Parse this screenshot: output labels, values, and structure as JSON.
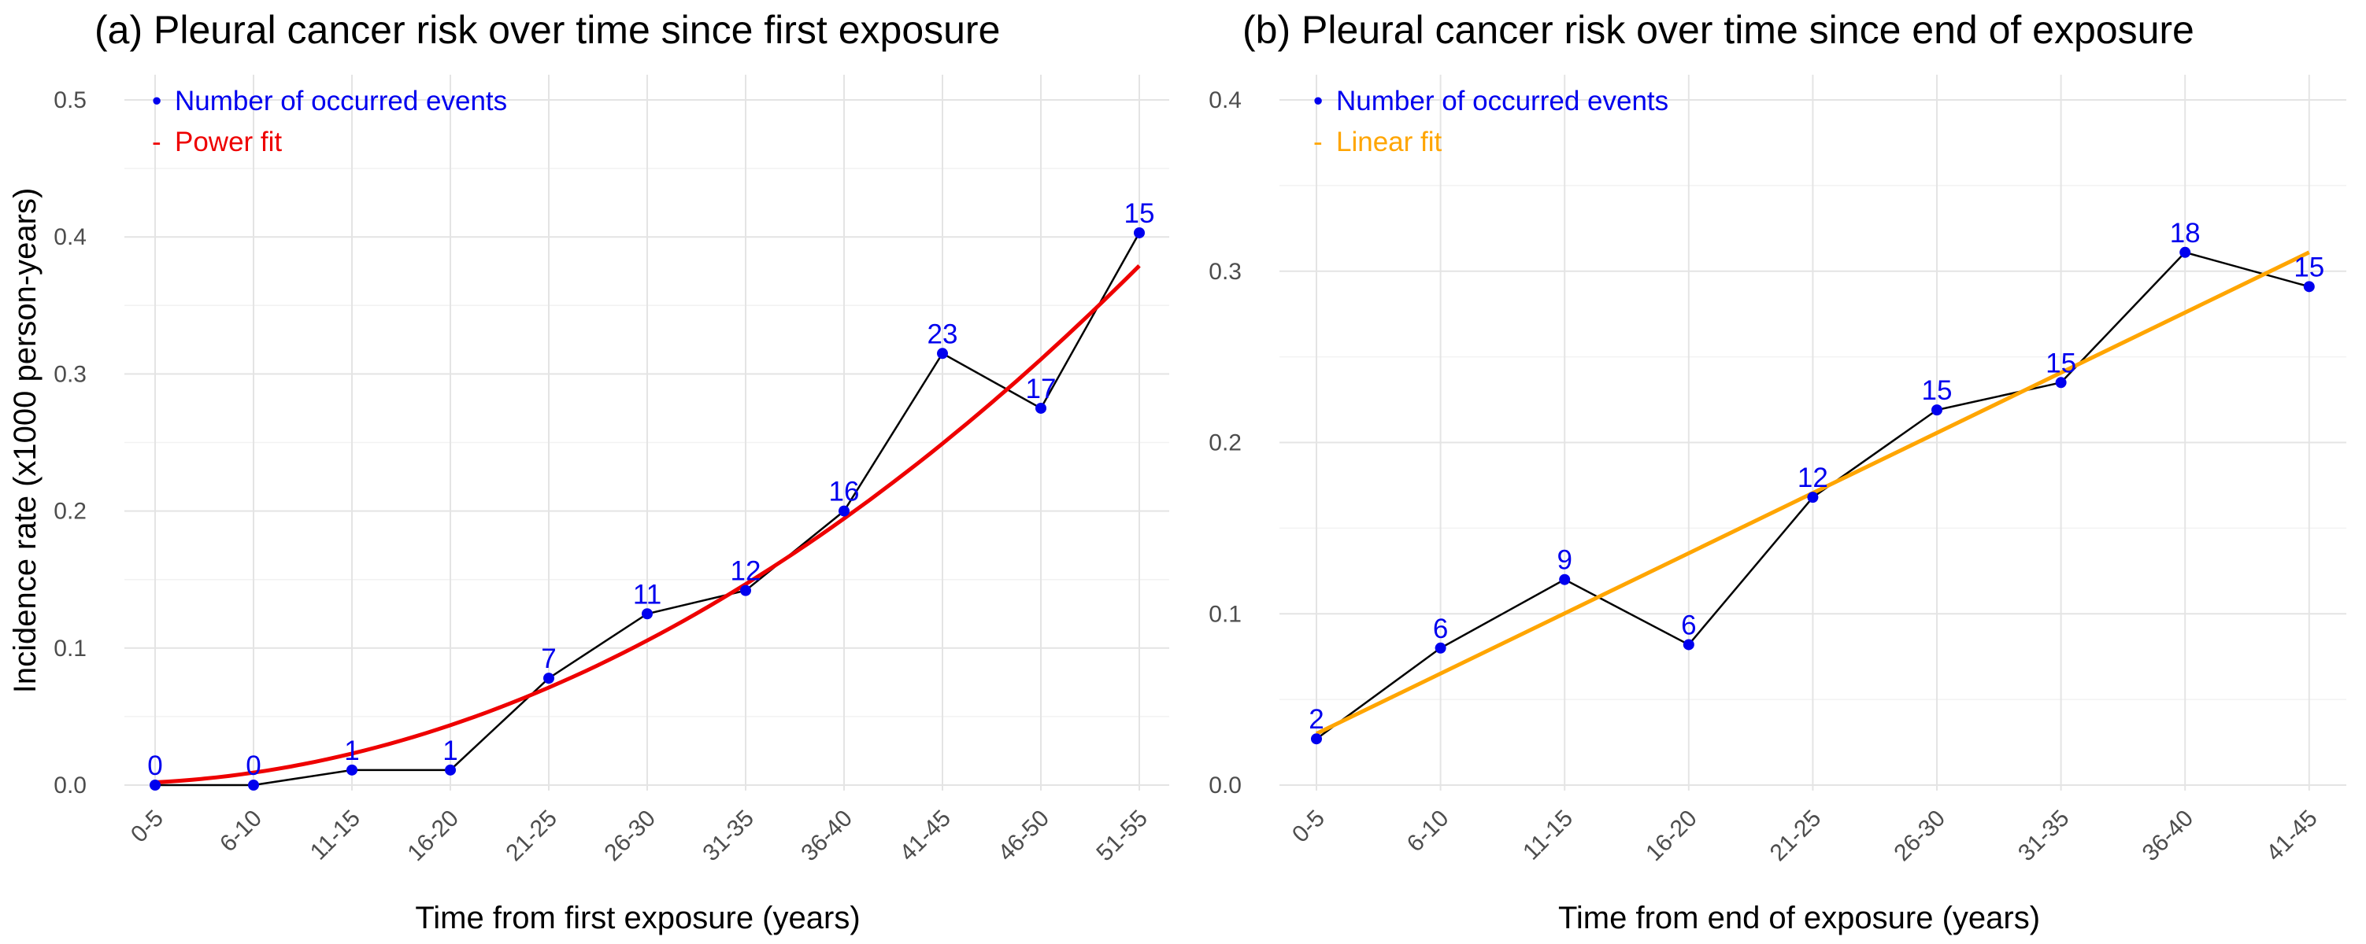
{
  "chart_data": [
    {
      "type": "line",
      "title": "(a) Pleural cancer risk over time since first exposure",
      "xlabel": "Time from first exposure (years)",
      "ylabel": "Incidence rate (x1000 person-years)",
      "ylim": [
        0,
        0.5
      ],
      "yticks": [
        "0.0",
        "0.1",
        "0.2",
        "0.3",
        "0.4",
        "0.5"
      ],
      "categories": [
        "0-5",
        "6-10",
        "11-15",
        "16-20",
        "21-25",
        "26-30",
        "31-35",
        "36-40",
        "41-45",
        "46-50",
        "51-55"
      ],
      "series": [
        {
          "name": "Number of occurred events",
          "color": "#0000ee",
          "values": [
            0.0,
            0.0,
            0.011,
            0.011,
            0.078,
            0.125,
            0.142,
            0.2,
            0.315,
            0.275,
            0.403
          ],
          "labels": [
            "0",
            "0",
            "1",
            "1",
            "7",
            "11",
            "12",
            "16",
            "23",
            "17",
            "15"
          ]
        },
        {
          "name": "Power fit",
          "color": "#ee0000",
          "fit": {
            "kind": "power",
            "a": 0.0037,
            "b": 0.0034,
            "exponent": 2.0
          }
        }
      ],
      "legend": [
        "Number of occurred events",
        "Power fit"
      ],
      "legend_markers": [
        "•",
        "-"
      ],
      "legend_position": "top-left",
      "grid": true
    },
    {
      "type": "line",
      "title": "(b) Pleural cancer risk over time since end of exposure",
      "xlabel": "Time from end of exposure (years)",
      "ylabel": "",
      "ylim": [
        0,
        0.4
      ],
      "yticks": [
        "0.0",
        "0.1",
        "0.2",
        "0.3",
        "0.4"
      ],
      "categories": [
        "0-5",
        "6-10",
        "11-15",
        "16-20",
        "21-25",
        "26-30",
        "31-35",
        "36-40",
        "41-45"
      ],
      "series": [
        {
          "name": "Number of occurred events",
          "color": "#0000ee",
          "values": [
            0.027,
            0.08,
            0.12,
            0.082,
            0.168,
            0.219,
            0.235,
            0.311,
            0.291
          ],
          "labels": [
            "2",
            "6",
            "9",
            "6",
            "12",
            "15",
            "15",
            "18",
            "15"
          ]
        },
        {
          "name": "Linear fit",
          "color": "#ffa500",
          "fit": {
            "kind": "linear",
            "start": 0.03,
            "end": 0.311
          }
        }
      ],
      "legend": [
        "Number of occurred events",
        "Linear fit"
      ],
      "legend_markers": [
        "•",
        "-"
      ],
      "legend_position": "top-left",
      "grid": true
    }
  ]
}
